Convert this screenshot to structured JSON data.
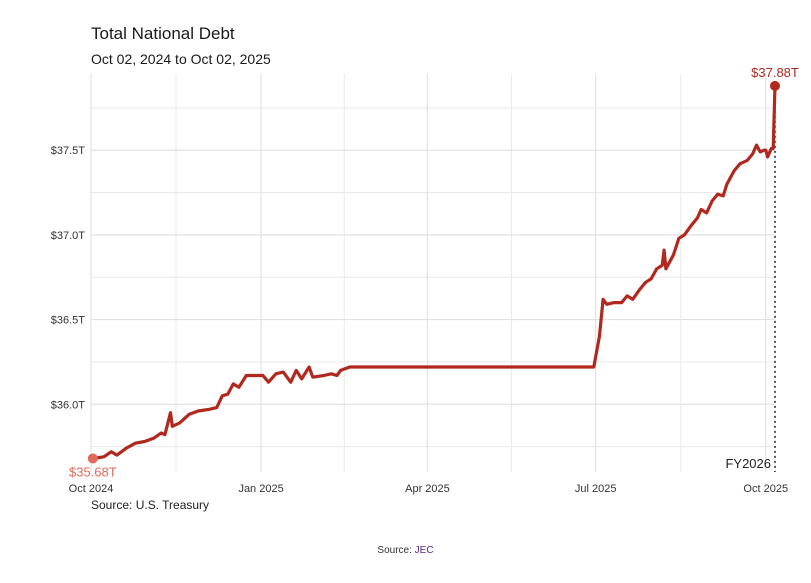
{
  "title": "Total National Debt",
  "subtitle": "Oct 02, 2024 to Oct 02, 2025",
  "source_note": "Source: U.S. Treasury",
  "footer": {
    "prefix": "Source: ",
    "link": "JEC"
  },
  "colors": {
    "line": "#b0281e",
    "start_point": "#e06b5a",
    "grid": "#e9e9e9",
    "marker": "#222222"
  },
  "chart_data": {
    "type": "line",
    "title": "Total National Debt",
    "subtitle": "Oct 02, 2024 to Oct 02, 2025",
    "xlabel": "",
    "ylabel": "",
    "y_unit": "trillion USD",
    "xlim": [
      "2024-10-01",
      "2025-10-06"
    ],
    "ylim": [
      35.6,
      37.95
    ],
    "x_ticks": [
      {
        "date": "2024-10-01",
        "label": "Oct 2024"
      },
      {
        "date": "2025-01-01",
        "label": "Jan 2025"
      },
      {
        "date": "2025-04-01",
        "label": "Apr 2025"
      },
      {
        "date": "2025-07-01",
        "label": "Jul 2025"
      },
      {
        "date": "2025-10-01",
        "label": "Oct 2025"
      }
    ],
    "y_ticks": [
      {
        "value": 36.0,
        "label": "$36.0T"
      },
      {
        "value": 36.5,
        "label": "$36.5T"
      },
      {
        "value": 37.0,
        "label": "$37.0T"
      },
      {
        "value": 37.5,
        "label": "$37.5T"
      }
    ],
    "grid": true,
    "series": [
      {
        "points": [
          [
            "2024-10-02",
            35.68
          ],
          [
            "2024-10-08",
            35.69
          ],
          [
            "2024-10-12",
            35.72
          ],
          [
            "2024-10-15",
            35.7
          ],
          [
            "2024-10-20",
            35.74
          ],
          [
            "2024-10-25",
            35.77
          ],
          [
            "2024-10-30",
            35.78
          ],
          [
            "2024-11-04",
            35.8
          ],
          [
            "2024-11-08",
            35.83
          ],
          [
            "2024-11-10",
            35.82
          ],
          [
            "2024-11-13",
            35.95
          ],
          [
            "2024-11-14",
            35.87
          ],
          [
            "2024-11-18",
            35.89
          ],
          [
            "2024-11-23",
            35.94
          ],
          [
            "2024-11-28",
            35.96
          ],
          [
            "2024-12-04",
            35.97
          ],
          [
            "2024-12-08",
            35.98
          ],
          [
            "2024-12-11",
            36.05
          ],
          [
            "2024-12-14",
            36.06
          ],
          [
            "2024-12-17",
            36.12
          ],
          [
            "2024-12-20",
            36.1
          ],
          [
            "2024-12-24",
            36.17
          ],
          [
            "2024-12-29",
            36.17
          ],
          [
            "2025-01-02",
            36.17
          ],
          [
            "2025-01-05",
            36.13
          ],
          [
            "2025-01-09",
            36.18
          ],
          [
            "2025-01-13",
            36.19
          ],
          [
            "2025-01-17",
            36.13
          ],
          [
            "2025-01-20",
            36.2
          ],
          [
            "2025-01-23",
            36.15
          ],
          [
            "2025-01-27",
            36.22
          ],
          [
            "2025-01-29",
            36.16
          ],
          [
            "2025-02-04",
            36.17
          ],
          [
            "2025-02-08",
            36.18
          ],
          [
            "2025-02-11",
            36.17
          ],
          [
            "2025-02-13",
            36.2
          ],
          [
            "2025-02-18",
            36.22
          ],
          [
            "2025-02-25",
            36.22
          ],
          [
            "2025-03-15",
            36.22
          ],
          [
            "2025-04-10",
            36.22
          ],
          [
            "2025-05-15",
            36.22
          ],
          [
            "2025-06-20",
            36.22
          ],
          [
            "2025-06-30",
            36.22
          ],
          [
            "2025-07-03",
            36.4
          ],
          [
            "2025-07-05",
            36.62
          ],
          [
            "2025-07-07",
            36.59
          ],
          [
            "2025-07-11",
            36.6
          ],
          [
            "2025-07-15",
            36.6
          ],
          [
            "2025-07-18",
            36.64
          ],
          [
            "2025-07-21",
            36.62
          ],
          [
            "2025-07-25",
            36.68
          ],
          [
            "2025-07-28",
            36.72
          ],
          [
            "2025-07-31",
            36.74
          ],
          [
            "2025-08-03",
            36.8
          ],
          [
            "2025-08-06",
            36.82
          ],
          [
            "2025-08-07",
            36.91
          ],
          [
            "2025-08-08",
            36.8
          ],
          [
            "2025-08-12",
            36.88
          ],
          [
            "2025-08-15",
            36.98
          ],
          [
            "2025-08-18",
            37.0
          ],
          [
            "2025-08-22",
            37.06
          ],
          [
            "2025-08-25",
            37.1
          ],
          [
            "2025-08-27",
            37.15
          ],
          [
            "2025-08-30",
            37.13
          ],
          [
            "2025-09-02",
            37.2
          ],
          [
            "2025-09-05",
            37.24
          ],
          [
            "2025-09-08",
            37.23
          ],
          [
            "2025-09-10",
            37.3
          ],
          [
            "2025-09-14",
            37.38
          ],
          [
            "2025-09-17",
            37.42
          ],
          [
            "2025-09-21",
            37.44
          ],
          [
            "2025-09-24",
            37.48
          ],
          [
            "2025-09-26",
            37.53
          ],
          [
            "2025-09-28",
            37.49
          ],
          [
            "2025-09-30",
            37.5
          ],
          [
            "2025-10-01",
            37.5
          ],
          [
            "2025-10-02",
            37.46
          ],
          [
            "2025-10-04",
            37.51
          ],
          [
            "2025-10-05",
            37.51
          ],
          [
            "2025-10-06",
            37.88
          ]
        ]
      }
    ],
    "start_label": {
      "date": "2024-10-02",
      "value": 35.68,
      "text": "$35.68T"
    },
    "end_label": {
      "date": "2025-10-06",
      "value": 37.88,
      "text": "$37.88T"
    },
    "marker": {
      "date": "2025-10-06",
      "label": "FY2026"
    }
  }
}
